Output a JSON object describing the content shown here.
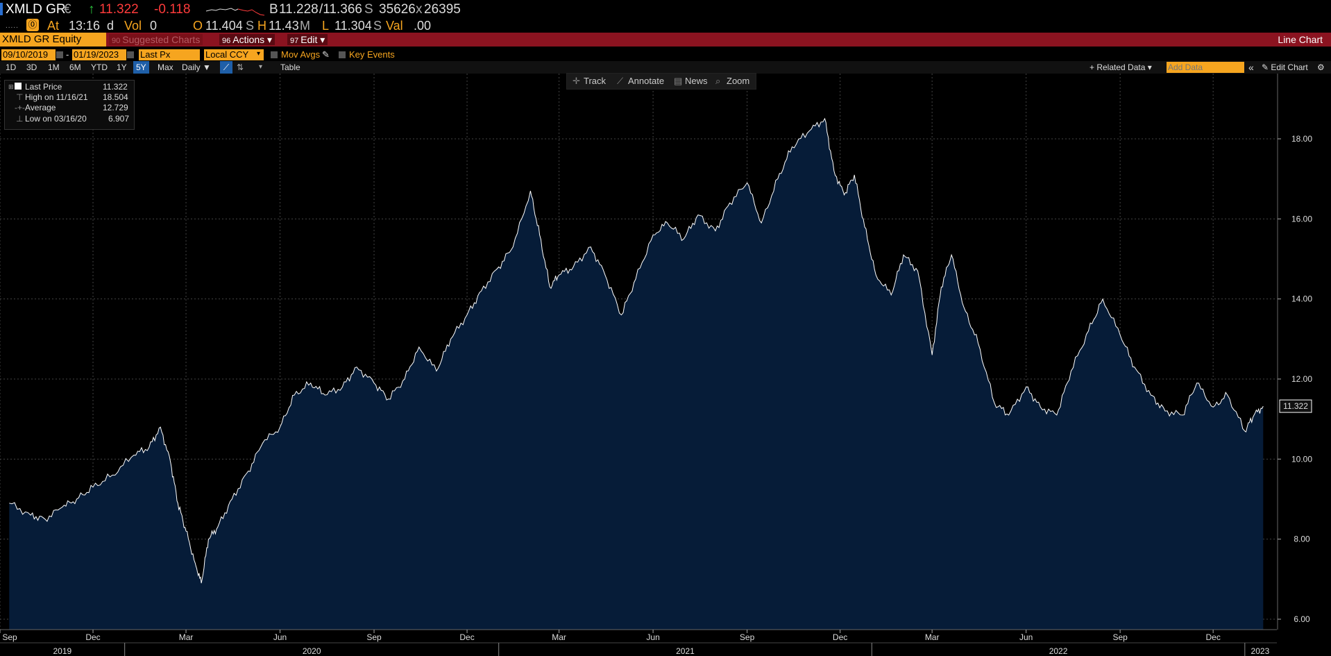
{
  "quote": {
    "ticker": "XMLD GR",
    "currency": "€",
    "last": "11.322",
    "change": "-0.118",
    "bid_label": "B",
    "bid": "11.228",
    "ask": "/11.366",
    "ask_suffix": "S",
    "bid_size": "35626",
    "x": "x",
    "ask_size": "26395",
    "at_label": "At",
    "time": "13:16",
    "d": "d",
    "vol_label": "Vol",
    "vol": "0",
    "open_label": "O",
    "open": "11.404",
    "open_suffix": "S",
    "high_label": "H",
    "high": "11.43",
    "high_suffix": "M",
    "low_label": "L",
    "low": "11.304",
    "low_suffix": "S",
    "val_label": "Val",
    "val": ".00",
    "colors": {
      "up": "#2ecc40",
      "down": "#ff3b3b",
      "accent": "#f6a51f",
      "brand_red": "#8b1320",
      "fill": "#061c38"
    }
  },
  "menubar": {
    "equity": "XMLD GR Equity",
    "suggested_num": "90",
    "suggested": "Suggested Charts",
    "actions_num": "96",
    "actions": "Actions ▾",
    "edit_num": "97",
    "edit": "Edit ▾",
    "title": "Line Chart"
  },
  "daterow": {
    "start": "09/10/2019",
    "dash": "-",
    "end": "01/19/2023",
    "field": "Last Px",
    "ccy": "Local CCY",
    "mov_avgs": "Mov Avgs",
    "key_events": "Key Events"
  },
  "rangerow": {
    "ranges": [
      "1D",
      "3D",
      "1M",
      "6M",
      "YTD",
      "1Y",
      "5Y",
      "Max"
    ],
    "selected": "5Y",
    "freq": "Daily ▼",
    "table": "Table",
    "related": "+ Related Data ▾",
    "add_data_placeholder": "Add Data",
    "collapse": "«",
    "edit_chart": "✎ Edit Chart",
    "settings": "⚙"
  },
  "tools": {
    "track": "Track",
    "annotate": "Annotate",
    "news": "News",
    "zoom": "Zoom"
  },
  "legend": {
    "last_label": "Last Price",
    "last": "11.322",
    "high_label": "High on 11/16/21",
    "high": "18.504",
    "avg_label": "Average",
    "avg": "12.729",
    "low_label": "Low on 03/16/20",
    "low": "6.907"
  },
  "chart_data": {
    "type": "area",
    "title": "",
    "xlabel": "",
    "ylabel": "",
    "ylim": [
      6,
      19
    ],
    "y_ticks": [
      "6.00",
      "8.00",
      "10.00",
      "12.00",
      "14.00",
      "16.00",
      "18.00"
    ],
    "last_value_label": "11.322",
    "x_month_labels": [
      "Sep",
      "Dec",
      "Mar",
      "Jun",
      "Sep",
      "Dec",
      "Mar",
      "Jun",
      "Sep",
      "Dec",
      "Mar",
      "Jun",
      "Sep",
      "Dec"
    ],
    "x_year_labels": [
      "2019",
      "2020",
      "2021",
      "2022",
      "2023"
    ],
    "grid": true,
    "series": [
      {
        "x": [
          "2019-09-10",
          "2019-10-01",
          "2019-10-15",
          "2019-11-01",
          "2019-11-15",
          "2019-12-01",
          "2019-12-20",
          "2020-01-10",
          "2020-01-25",
          "2020-02-05",
          "2020-02-15",
          "2020-02-22",
          "2020-03-01",
          "2020-03-10",
          "2020-03-16",
          "2020-03-23",
          "2020-04-01",
          "2020-04-15",
          "2020-05-01",
          "2020-05-15",
          "2020-06-01",
          "2020-06-15",
          "2020-07-01",
          "2020-07-15",
          "2020-08-01",
          "2020-08-15",
          "2020-09-01",
          "2020-09-15",
          "2020-10-01",
          "2020-10-15",
          "2020-11-01",
          "2020-11-15",
          "2020-12-01",
          "2020-12-15",
          "2021-01-01",
          "2021-01-15",
          "2021-02-01",
          "2021-02-10",
          "2021-02-20",
          "2021-03-01",
          "2021-03-15",
          "2021-04-01",
          "2021-04-15",
          "2021-05-01",
          "2021-05-15",
          "2021-06-01",
          "2021-06-15",
          "2021-07-01",
          "2021-07-15",
          "2021-08-01",
          "2021-08-15",
          "2021-09-01",
          "2021-09-15",
          "2021-10-01",
          "2021-10-15",
          "2021-11-01",
          "2021-11-16",
          "2021-11-25",
          "2021-12-05",
          "2021-12-15",
          "2021-12-25",
          "2022-01-05",
          "2022-01-20",
          "2022-02-01",
          "2022-02-15",
          "2022-03-01",
          "2022-03-10",
          "2022-03-20",
          "2022-04-01",
          "2022-04-15",
          "2022-05-01",
          "2022-05-15",
          "2022-06-01",
          "2022-06-15",
          "2022-07-01",
          "2022-07-15",
          "2022-08-01",
          "2022-08-15",
          "2022-09-01",
          "2022-09-15",
          "2022-10-01",
          "2022-10-15",
          "2022-11-01",
          "2022-11-15",
          "2022-12-01",
          "2022-12-15",
          "2023-01-01",
          "2023-01-10",
          "2023-01-19"
        ],
        "values": [
          8.9,
          8.6,
          8.5,
          8.8,
          9.0,
          9.3,
          9.6,
          10.1,
          10.3,
          10.8,
          9.9,
          8.9,
          8.2,
          7.4,
          6.9,
          8.0,
          8.3,
          9.0,
          9.7,
          10.4,
          10.8,
          11.6,
          11.9,
          11.6,
          11.8,
          12.3,
          11.9,
          11.5,
          12.0,
          12.8,
          12.2,
          13.0,
          13.6,
          14.2,
          14.8,
          15.3,
          16.7,
          15.6,
          14.3,
          14.6,
          14.8,
          15.3,
          14.6,
          13.6,
          14.5,
          15.6,
          15.9,
          15.5,
          16.1,
          15.7,
          16.4,
          16.9,
          15.9,
          17.0,
          17.8,
          18.2,
          18.504,
          17.2,
          16.6,
          17.1,
          15.8,
          14.6,
          14.1,
          15.1,
          14.7,
          12.6,
          14.3,
          15.1,
          13.8,
          12.9,
          11.4,
          11.1,
          11.8,
          11.3,
          11.1,
          12.2,
          13.2,
          14.0,
          13.1,
          12.3,
          11.6,
          11.2,
          11.1,
          11.9,
          11.3,
          11.6,
          10.7,
          11.1,
          11.322
        ]
      }
    ]
  }
}
